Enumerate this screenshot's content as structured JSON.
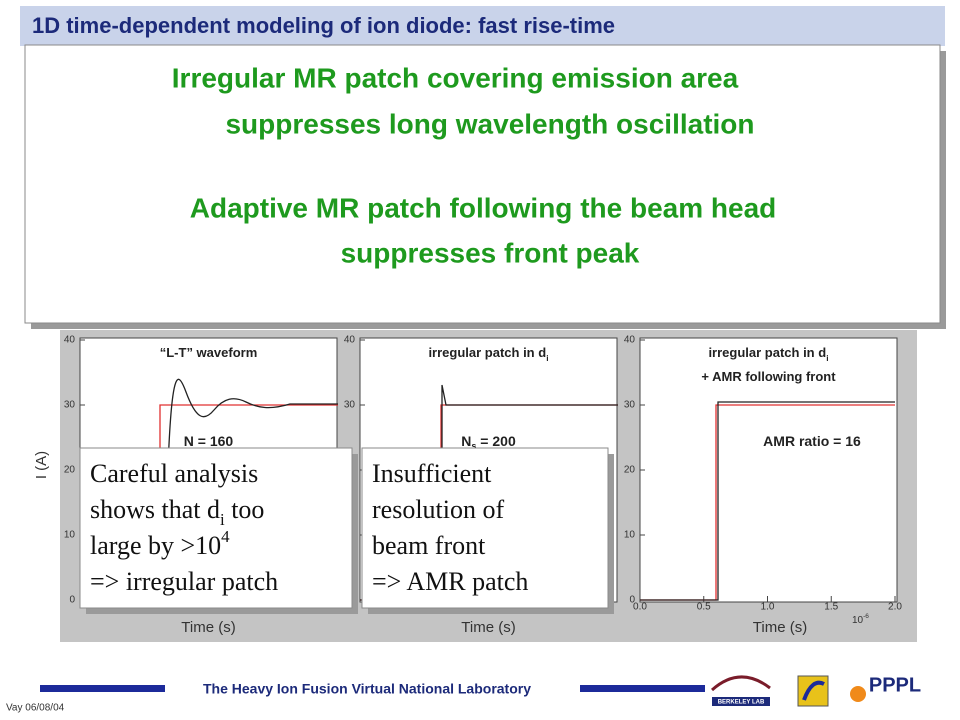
{
  "header": {
    "title": "1D time-dependent modeling of ion diode: fast rise-time"
  },
  "overlay": {
    "lines": [
      "Irregular MR patch covering emission area",
      "suppresses long wavelength oscillation",
      "Adaptive MR patch following the beam head",
      "suppresses front peak"
    ]
  },
  "plots": {
    "y_axis_label": "I (A)",
    "x_axis_label": "Time (s)",
    "yticks": [
      0,
      10,
      20,
      30,
      40
    ],
    "ylim": [
      0,
      40
    ],
    "xlim": [
      0,
      2
    ],
    "xticks": [
      {
        "value": 0,
        "label": "0.0"
      },
      {
        "value": 0.5,
        "label": "0.5"
      },
      {
        "value": 1,
        "label": "1.0"
      },
      {
        "value": 1.5,
        "label": "1.5"
      },
      {
        "value": 2,
        "label": "2.0"
      }
    ],
    "x_exponent": [
      {
        "t": "10"
      },
      {
        "t": "-6",
        "sup": true
      }
    ],
    "panels": [
      {
        "title": [
          [
            {
              "t": "“L-T” waveform"
            }
          ]
        ],
        "annotation": [
          {
            "t": "N = 160"
          }
        ]
      },
      {
        "title": [
          [
            {
              "t": "irregular patch  in d"
            },
            {
              "t": "i",
              "sub": true
            }
          ]
        ],
        "annotation": [
          {
            "t": "N"
          },
          {
            "t": "s",
            "sub": true
          },
          {
            "t": " = 200"
          }
        ]
      },
      {
        "title": [
          [
            {
              "t": "irregular patch  in d"
            },
            {
              "t": "i",
              "sub": true
            }
          ],
          [
            {
              "t": "+ AMR following front"
            }
          ]
        ],
        "annotation": [
          {
            "t": "AMR ratio = 16"
          }
        ]
      }
    ]
  },
  "callouts": [
    {
      "lines": [
        [
          {
            "t": "Careful analysis"
          }
        ],
        [
          {
            "t": "shows that d"
          },
          {
            "t": "i",
            "sub": true
          },
          {
            "t": " too"
          }
        ],
        [
          {
            "t": "large by >10"
          },
          {
            "t": "4",
            "sup": true
          }
        ],
        [
          {
            "t": "=> irregular patch"
          }
        ]
      ]
    },
    {
      "lines": [
        [
          {
            "t": "Insufficient"
          }
        ],
        [
          {
            "t": "resolution of"
          }
        ],
        [
          {
            "t": "beam front"
          }
        ],
        [
          {
            "t": "=> AMR patch"
          }
        ]
      ]
    }
  ],
  "footer": {
    "text": "The Heavy Ion Fusion Virtual National Laboratory",
    "date": "Vay 06/08/04",
    "logo_left": "BERKELEY LAB",
    "logo_right": "PPPL"
  }
}
